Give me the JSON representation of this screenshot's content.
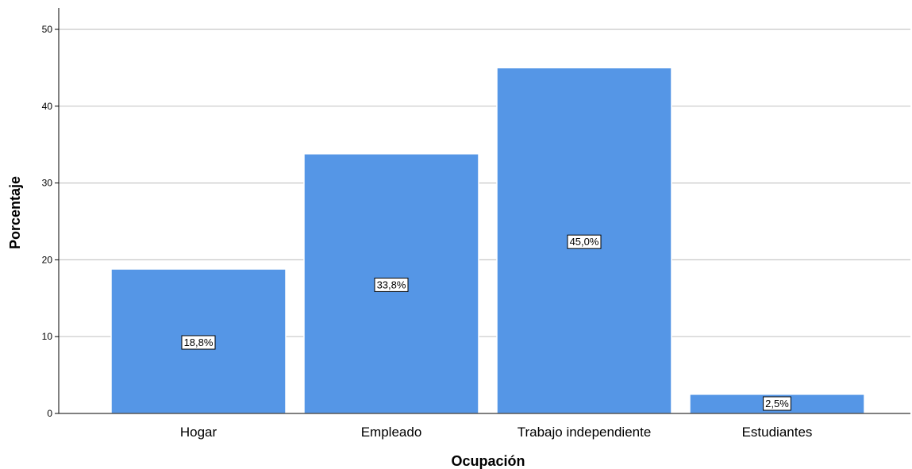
{
  "chart_data": {
    "type": "bar",
    "categories": [
      "Hogar",
      "Empleado",
      "Trabajo independiente",
      "Estudiantes"
    ],
    "values": [
      18.8,
      33.8,
      45.0,
      2.5
    ],
    "data_labels": [
      "18,8%",
      "33,8%",
      "45,0%",
      "2,5%"
    ],
    "xlabel": "Ocupación",
    "ylabel": "Porcentaje",
    "ylim": [
      0,
      52
    ],
    "yticks": [
      0,
      10,
      20,
      30,
      40,
      50
    ],
    "grid": true,
    "colors": {
      "bar": "#5596e6",
      "bar_edge": "#ffffff",
      "grid": "#c8c8c8",
      "axis": "#000000"
    }
  }
}
